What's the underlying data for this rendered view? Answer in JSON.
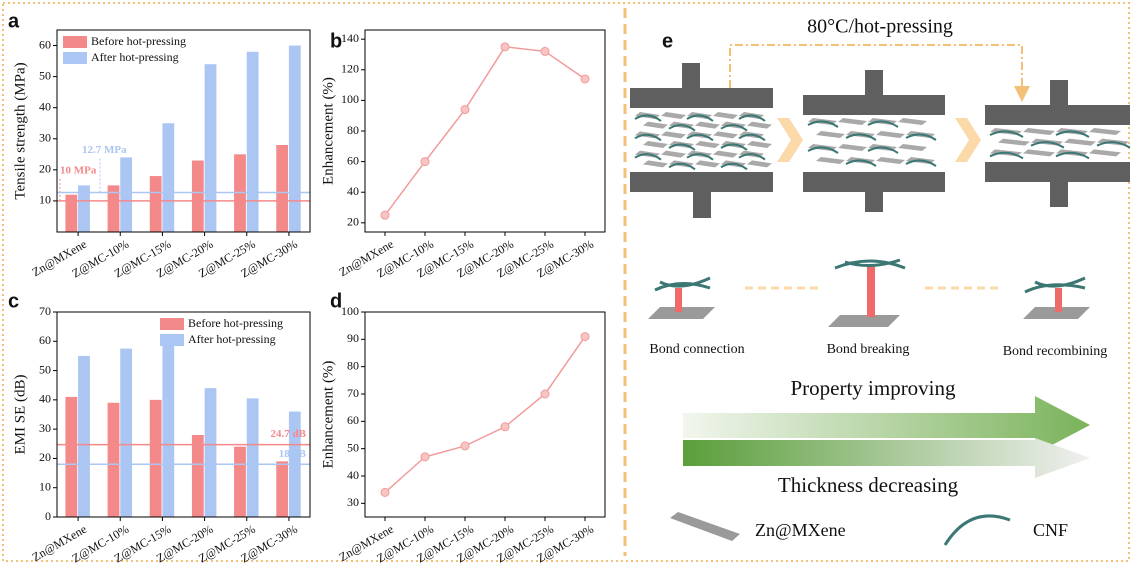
{
  "chart_data": [
    {
      "type": "bar",
      "panel": "a",
      "y_label": "Tensile strength (MPa)",
      "categories": [
        "Zn@MXene",
        "Z@MC-10%",
        "Z@MC-15%",
        "Z@MC-20%",
        "Z@MC-25%",
        "Z@MC-30%"
      ],
      "series": [
        {
          "name": "Before hot-pressing",
          "color": "#f4898a",
          "values": [
            12,
            15,
            18,
            23,
            25,
            28
          ]
        },
        {
          "name": "After hot-pressing",
          "color": "#abc6f2",
          "values": [
            15,
            24,
            35,
            54,
            58,
            60
          ]
        }
      ],
      "hlines": [
        {
          "value": 10,
          "label": "10 MPa",
          "color": "#f4898a"
        },
        {
          "value": 12.7,
          "label": "12.7 MPa",
          "color": "#abc6f2"
        }
      ],
      "ylim": [
        0,
        65
      ],
      "yticks": [
        10,
        20,
        30,
        40,
        50,
        60
      ],
      "legend": "upper left"
    },
    {
      "type": "line",
      "panel": "b",
      "y_label": "Enhancement (%)",
      "categories": [
        "Zn@MXene",
        "Z@MC-10%",
        "Z@MC-15%",
        "Z@MC-20%",
        "Z@MC-25%",
        "Z@MC-30%"
      ],
      "color": "#f29a9a",
      "values": [
        25,
        60,
        94,
        135,
        132,
        114
      ],
      "ylim": [
        14,
        146
      ],
      "yticks": [
        20,
        40,
        60,
        80,
        100,
        120,
        140
      ]
    },
    {
      "type": "bar",
      "panel": "c",
      "y_label": "EMI SE (dB)",
      "categories": [
        "Zn@MXene",
        "Z@MC-10%",
        "Z@MC-15%",
        "Z@MC-20%",
        "Z@MC-25%",
        "Z@MC-30%"
      ],
      "series": [
        {
          "name": "Before hot-pressing",
          "color": "#f4898a",
          "values": [
            41,
            39,
            40,
            28,
            24,
            19
          ]
        },
        {
          "name": "After hot-pressing",
          "color": "#abc6f2",
          "values": [
            55,
            57.5,
            60,
            44,
            40.5,
            36
          ]
        }
      ],
      "hlines": [
        {
          "value": 24.7,
          "label": "24.7 dB",
          "color": "#f4898a"
        },
        {
          "value": 18,
          "label": "18 dB",
          "color": "#abc6f2"
        }
      ],
      "ylim": [
        0,
        70
      ],
      "yticks": [
        0,
        10,
        20,
        30,
        40,
        50,
        60,
        70
      ],
      "legend": "upper right"
    },
    {
      "type": "line",
      "panel": "d",
      "y_label": "Enhancement (%)",
      "categories": [
        "Zn@MXene",
        "Z@MC-10%",
        "Z@MC-15%",
        "Z@MC-20%",
        "Z@MC-25%",
        "Z@MC-30%"
      ],
      "color": "#f29a9a",
      "values": [
        34,
        47,
        51,
        58,
        70,
        91
      ],
      "ylim": [
        25,
        100
      ],
      "yticks": [
        30,
        40,
        50,
        60,
        70,
        80,
        90,
        100
      ]
    }
  ],
  "diagram": {
    "panel": "e",
    "process": "80°C/hot-pressing",
    "stages": [
      "Bond connection",
      "Bond breaking",
      "Bond recombining"
    ],
    "arrow_top": "Property improving",
    "arrow_bottom": "Thickness decreasing",
    "legend": [
      "Zn@MXene",
      "CNF"
    ]
  }
}
